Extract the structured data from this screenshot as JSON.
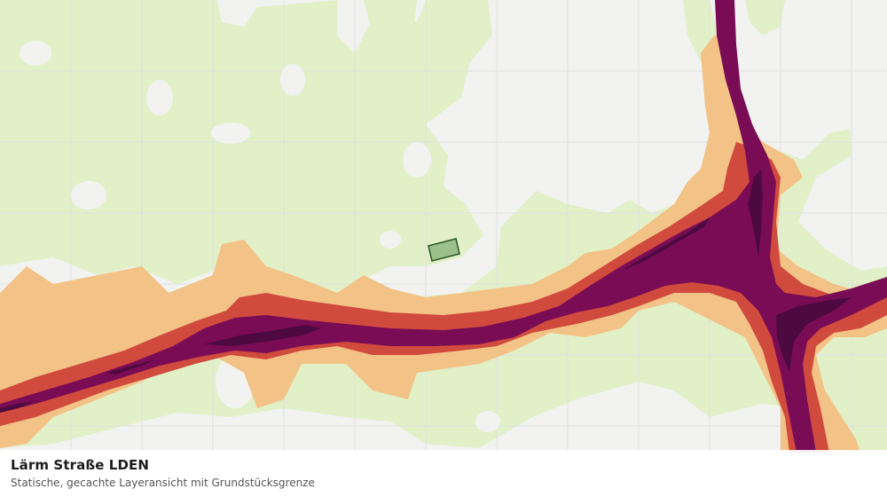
{
  "caption": {
    "title": "Lärm Straße LDEN",
    "subtitle": "Statische, gecachte Layeransicht mit Grundstücksgrenze"
  },
  "colors": {
    "background": "#f2f3f1",
    "grid": "#e0e1de",
    "noise_band_1": "#e2f0c8",
    "noise_band_2": "#f3c286",
    "noise_band_3": "#d04a3e",
    "noise_band_4": "#7a0c55",
    "noise_band_5": "#4d0a40",
    "parcel_fill": "#9bc08a",
    "parcel_stroke": "#2e5a2a"
  },
  "icons": {
    "parcel": "parcel-polygon"
  }
}
